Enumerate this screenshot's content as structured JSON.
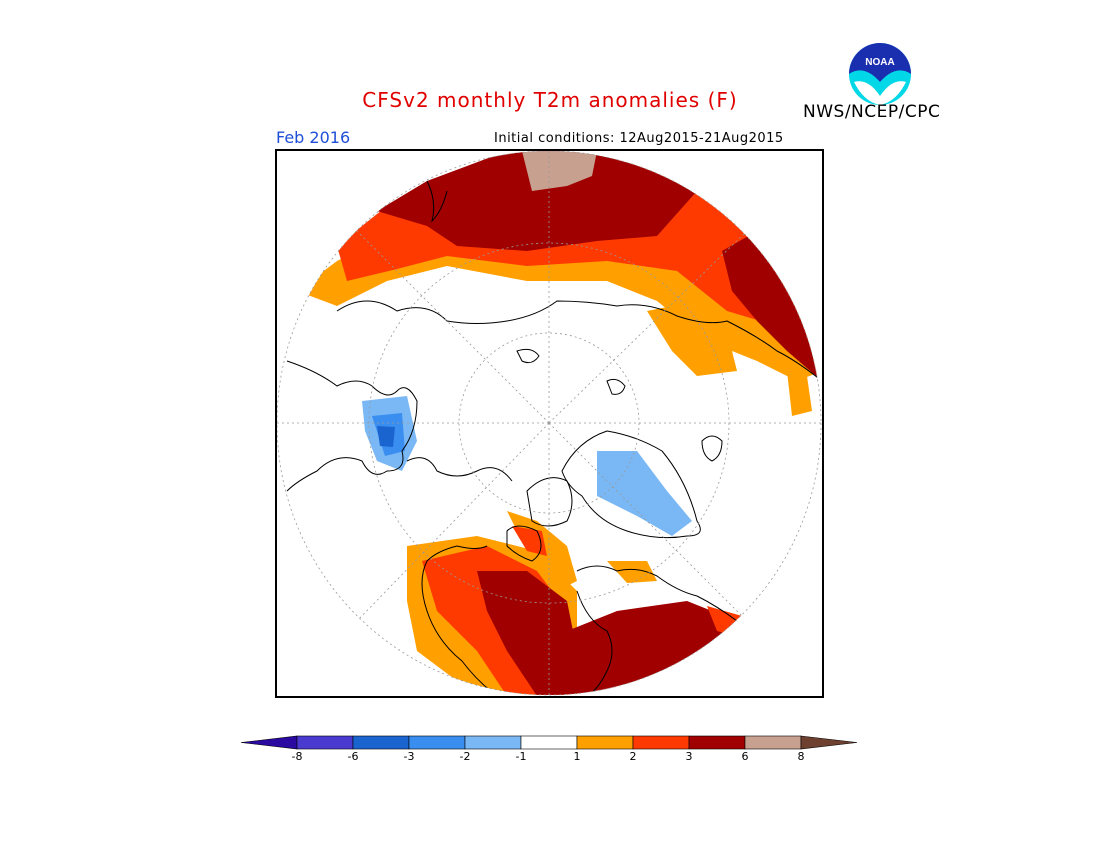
{
  "header": {
    "title": "CFSv2 monthly T2m anomalies (F)",
    "month": "Feb 2016",
    "initial_conditions": "Initial conditions: 12Aug2015-21Aug2015",
    "agency": "NWS/NCEP/CPC",
    "logo_text": "NOAA"
  },
  "colors": {
    "title": "#e00000",
    "month": "#1f4fd8",
    "land_outline": "#000000"
  },
  "legend": {
    "ticks": [
      "-8",
      "-6",
      "-3",
      "-2",
      "-1",
      "1",
      "2",
      "3",
      "6",
      "8"
    ],
    "bins": [
      {
        "label": "< -8",
        "color": "#2a0aa0"
      },
      {
        "label": "-8 to -6",
        "color": "#4b3ad0"
      },
      {
        "label": "-6 to -3",
        "color": "#1a64d0"
      },
      {
        "label": "-3 to -2",
        "color": "#3a8ef0"
      },
      {
        "label": "-2 to -1",
        "color": "#7ab8f5"
      },
      {
        "label": "-1 to 1",
        "color": "#ffffff"
      },
      {
        "label": "1 to 2",
        "color": "#ffa000"
      },
      {
        "label": "2 to 3",
        "color": "#ff3a00"
      },
      {
        "label": "3 to 6",
        "color": "#a00000"
      },
      {
        "label": "6 to 8",
        "color": "#c8a090"
      },
      {
        "label": "> 8",
        "color": "#6e4030"
      }
    ]
  }
}
